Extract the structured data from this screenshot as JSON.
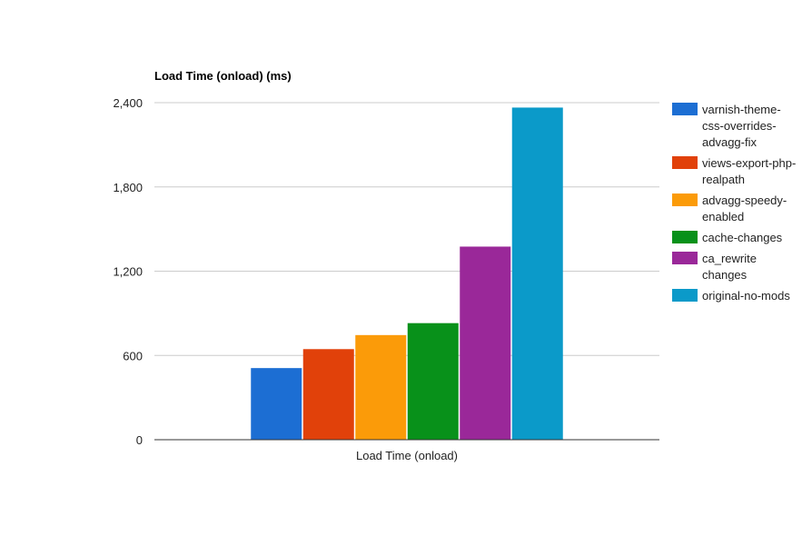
{
  "chart_data": {
    "type": "bar",
    "title": "Load Time (onload) (ms)",
    "xlabel": "",
    "ylabel": "",
    "categories": [
      "Load Time (onload)"
    ],
    "ylim": [
      0,
      2400
    ],
    "yticks": [
      0,
      600,
      1200,
      1800,
      2400
    ],
    "ytick_labels": [
      "0",
      "600",
      "1,200",
      "1,800",
      "2,400"
    ],
    "grid": true,
    "legend_position": "right",
    "series": [
      {
        "name": "varnish-theme-css-overrides-advagg-fix",
        "legend_lines": [
          "varnish-theme-",
          "css-overrides-",
          "advagg-fix"
        ],
        "color": "#1c6ed3",
        "values": [
          510
        ]
      },
      {
        "name": "views-export-php-realpath",
        "legend_lines": [
          "views-export-php-",
          "realpath"
        ],
        "color": "#e1410a",
        "values": [
          645
        ]
      },
      {
        "name": "advagg-speedy-enabled",
        "legend_lines": [
          "advagg-speedy-",
          "enabled"
        ],
        "color": "#fb9b09",
        "values": [
          745
        ]
      },
      {
        "name": "cache-changes",
        "legend_lines": [
          "cache-changes"
        ],
        "color": "#08911a",
        "values": [
          830
        ]
      },
      {
        "name": "ca_rewrite changes",
        "legend_lines": [
          "ca_rewrite",
          "changes"
        ],
        "color": "#9a2899",
        "values": [
          1375
        ]
      },
      {
        "name": "original-no-mods",
        "legend_lines": [
          "original-no-mods"
        ],
        "color": "#0b9ac9",
        "values": [
          2365
        ]
      }
    ]
  }
}
